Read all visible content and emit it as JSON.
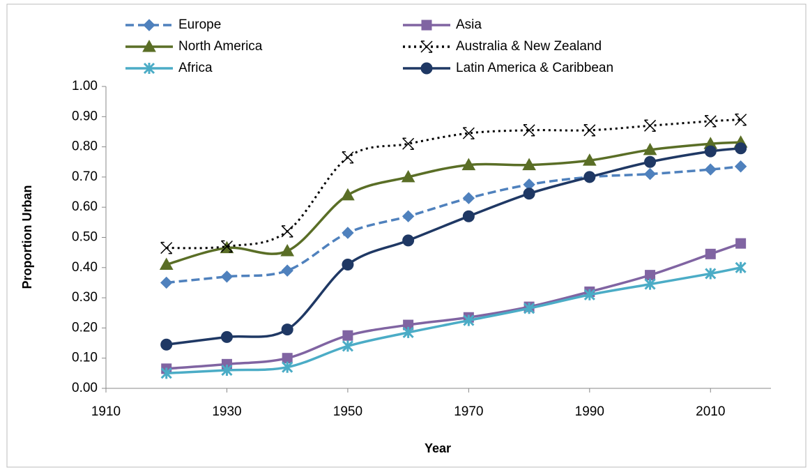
{
  "chart_data": {
    "type": "line",
    "smooth": true,
    "x_label": "Year",
    "y_label": "Proportion Urban",
    "x": [
      1920,
      1930,
      1940,
      1950,
      1960,
      1970,
      1980,
      1990,
      2000,
      2010,
      2015
    ],
    "xlim": [
      1910,
      2020
    ],
    "xticks": [
      1910,
      1930,
      1950,
      1970,
      1990,
      2010
    ],
    "ylim": [
      0,
      1
    ],
    "yticks": [
      {
        "value": 0,
        "label": "0.00"
      },
      {
        "value": 0.1,
        "label": "0.10"
      },
      {
        "value": 0.2,
        "label": "0.20"
      },
      {
        "value": 0.3,
        "label": "0.30"
      },
      {
        "value": 0.4,
        "label": "0.40"
      },
      {
        "value": 0.5,
        "label": "0.50"
      },
      {
        "value": 0.6,
        "label": "0.60"
      },
      {
        "value": 0.7,
        "label": "0.70"
      },
      {
        "value": 0.8,
        "label": "0.80"
      },
      {
        "value": 0.9,
        "label": "0.90"
      },
      {
        "value": 1,
        "label": "1.00"
      }
    ],
    "legend": "top",
    "series": [
      {
        "name": "Europe",
        "color": "#4f81bd",
        "dash": "dashed",
        "marker": "diamond",
        "values": [
          0.35,
          0.37,
          0.39,
          0.515,
          0.57,
          0.63,
          0.675,
          0.7,
          0.71,
          0.725,
          0.735
        ]
      },
      {
        "name": "Asia",
        "color": "#8064a2",
        "dash": "solid",
        "marker": "square",
        "values": [
          0.065,
          0.08,
          0.1,
          0.175,
          0.21,
          0.235,
          0.27,
          0.32,
          0.375,
          0.445,
          0.48
        ]
      },
      {
        "name": "North America",
        "color": "#5a6e26",
        "dash": "solid",
        "marker": "triangle",
        "values": [
          0.41,
          0.465,
          0.455,
          0.64,
          0.7,
          0.74,
          0.74,
          0.755,
          0.79,
          0.81,
          0.815
        ]
      },
      {
        "name": "Australia & New Zealand",
        "color": "#000000",
        "dash": "dotted",
        "marker": "x",
        "values": [
          0.465,
          0.47,
          0.52,
          0.765,
          0.81,
          0.845,
          0.855,
          0.855,
          0.87,
          0.885,
          0.89
        ]
      },
      {
        "name": "Africa",
        "color": "#4bacc6",
        "dash": "solid",
        "marker": "star",
        "values": [
          0.05,
          0.06,
          0.07,
          0.14,
          0.185,
          0.225,
          0.265,
          0.31,
          0.345,
          0.38,
          0.4
        ]
      },
      {
        "name": "Latin America & Caribbean",
        "color": "#1f3864",
        "dash": "solid",
        "marker": "circle",
        "values": [
          0.145,
          0.17,
          0.195,
          0.41,
          0.49,
          0.57,
          0.645,
          0.7,
          0.75,
          0.785,
          0.795
        ]
      }
    ]
  }
}
